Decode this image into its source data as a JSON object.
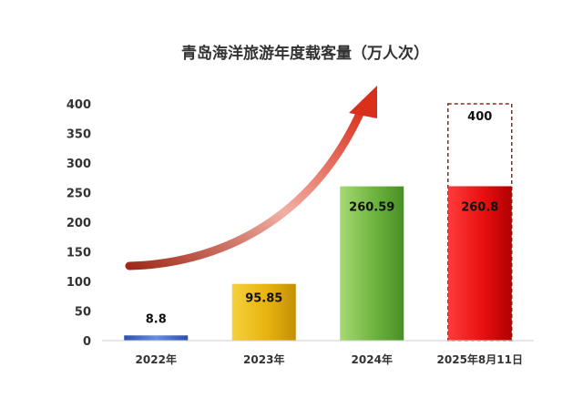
{
  "chart_data": {
    "type": "bar",
    "title": "青岛海洋旅游年度载客量（万人次）",
    "categories": [
      "2022年",
      "2023年",
      "2024年",
      "2025年8月11日"
    ],
    "values": [
      8.8,
      95.85,
      260.59,
      260.8
    ],
    "value_labels": [
      "8.8",
      "95.85",
      "260.59",
      "260.8"
    ],
    "target": {
      "category": "2025年8月11日",
      "value": 400,
      "label": "400"
    },
    "yticks": [
      0,
      50,
      100,
      150,
      200,
      250,
      300,
      350,
      400
    ],
    "ylim": [
      0,
      400
    ],
    "grid": false,
    "legend": "none",
    "bar_colors": [
      "#3f67c4",
      "#e8b40e",
      "#6cb33f",
      "#e81010"
    ],
    "target_border_color": "#8b2a1a",
    "trend_arrow_color": "#d9301e"
  }
}
